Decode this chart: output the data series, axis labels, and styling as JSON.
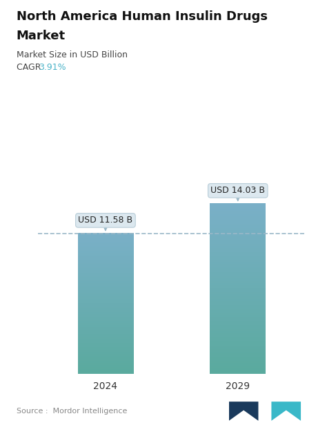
{
  "title_line1": "North America Human Insulin Drugs",
  "title_line2": "Market",
  "subtitle": "Market Size in USD Billion",
  "cagr_label": "CAGR ",
  "cagr_value": "3.91%",
  "cagr_color": "#4ab3c8",
  "categories": [
    "2024",
    "2029"
  ],
  "values": [
    11.58,
    14.03
  ],
  "bar_labels": [
    "USD 11.58 B",
    "USD 14.03 B"
  ],
  "bar_gradient_top": "#7ab0c8",
  "bar_gradient_bottom": "#5aaa9e",
  "dashed_line_color": "#9ab8c8",
  "dashed_line_y": 11.58,
  "source_text": "Source :  Mordor Intelligence",
  "background_color": "#ffffff",
  "title_fontsize": 13,
  "subtitle_fontsize": 9,
  "cagr_fontsize": 9,
  "bar_label_fontsize": 9,
  "axis_label_fontsize": 10,
  "source_fontsize": 8,
  "ylim": [
    0,
    17.5
  ],
  "bar_width": 0.42
}
